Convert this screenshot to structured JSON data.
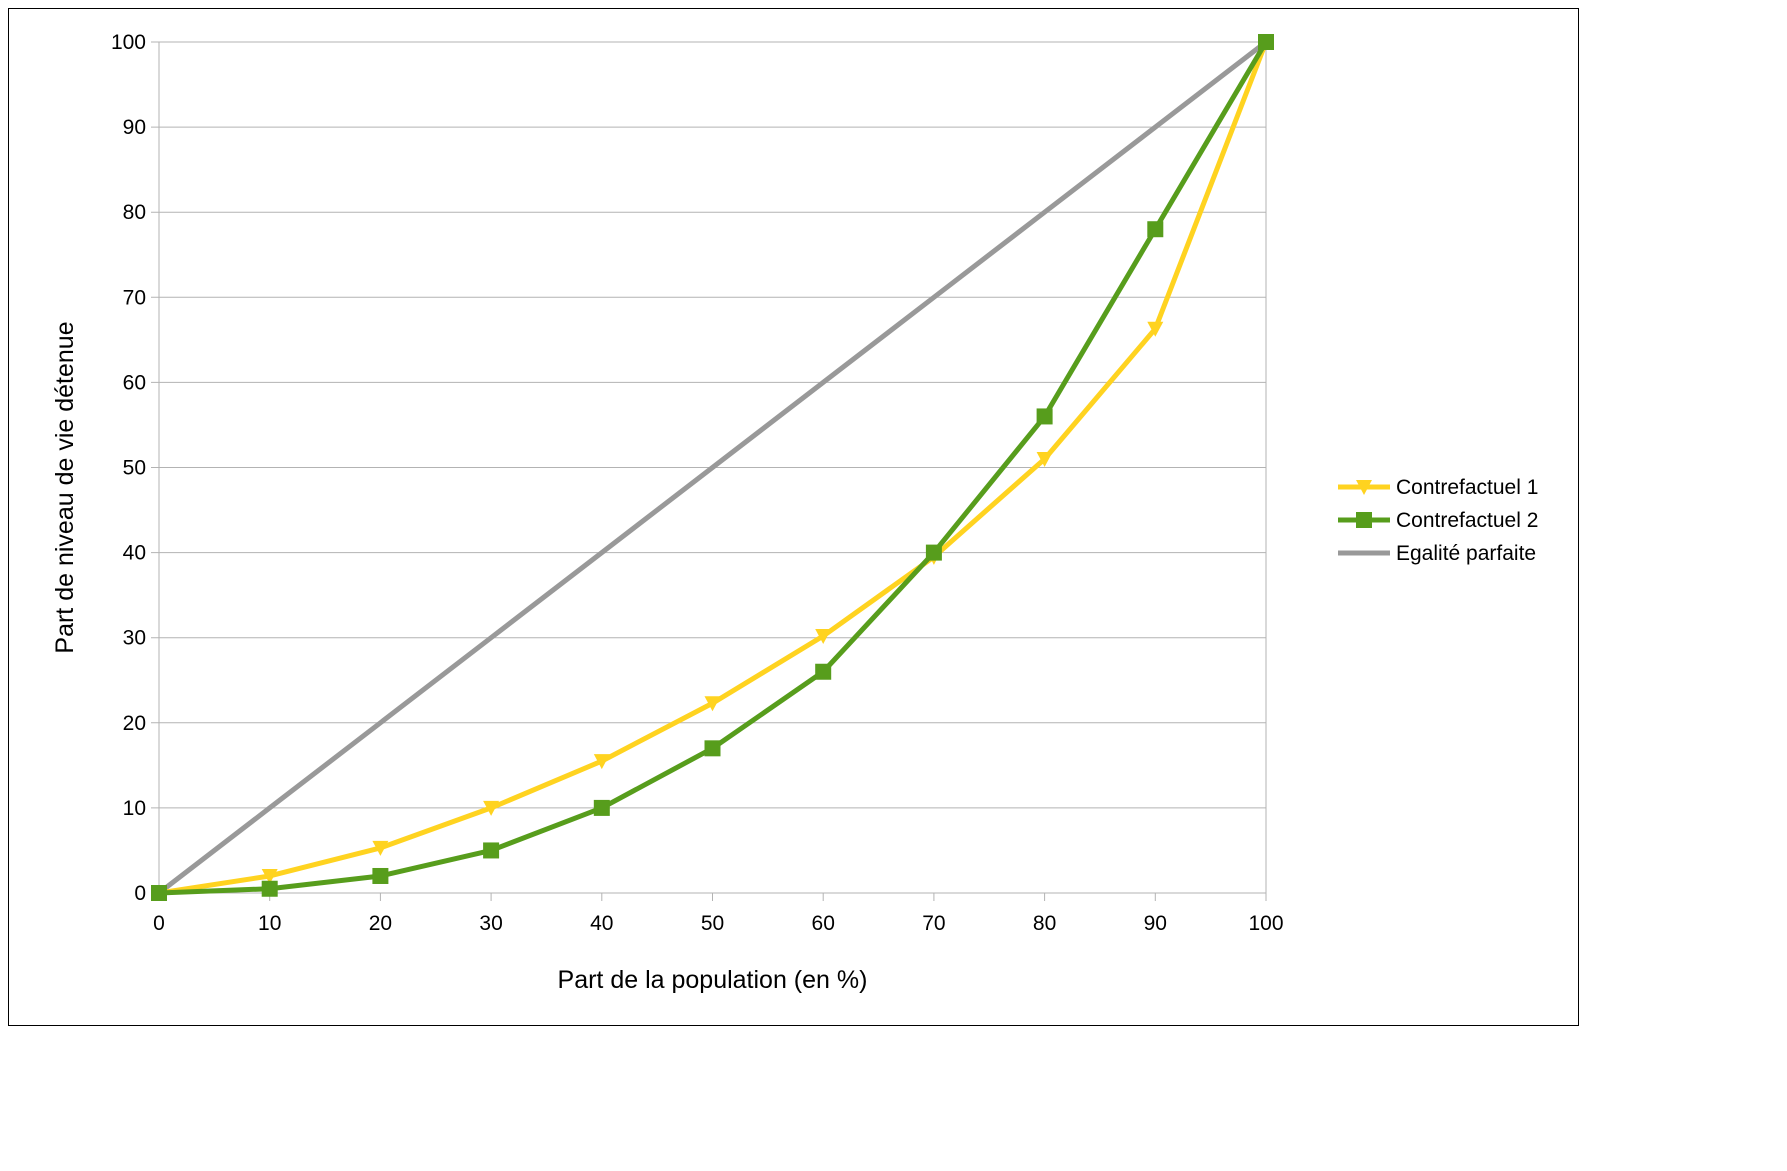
{
  "chart_data": {
    "type": "line",
    "title": "",
    "xlabel": "Part de la population (en %)",
    "ylabel": "Part de niveau de vie détenue",
    "x": [
      0,
      10,
      20,
      30,
      40,
      50,
      60,
      70,
      80,
      90,
      100
    ],
    "xlim": [
      0,
      100
    ],
    "ylim": [
      0,
      100
    ],
    "x_ticks": [
      0,
      10,
      20,
      30,
      40,
      50,
      60,
      70,
      80,
      90,
      100
    ],
    "y_ticks": [
      0,
      10,
      20,
      30,
      40,
      50,
      60,
      70,
      80,
      90,
      100
    ],
    "grid": "horizontal",
    "legend_position": "right",
    "series": [
      {
        "name": "Contrefactuel 1",
        "color": "#ffd320",
        "marker": "triangle-down",
        "values": [
          0,
          2,
          5.3,
          10,
          15.5,
          22.3,
          30.2,
          39.5,
          51,
          66.3,
          100
        ]
      },
      {
        "name": "Contrefactuel 2",
        "color": "#579d1c",
        "marker": "square",
        "values": [
          0,
          0.5,
          2,
          5,
          10,
          17,
          26,
          40,
          56,
          78,
          100
        ]
      },
      {
        "name": "Egalité parfaite",
        "color": "#999999",
        "marker": "none",
        "values": [
          0,
          10,
          20,
          30,
          40,
          50,
          60,
          70,
          80,
          90,
          100
        ]
      }
    ]
  }
}
